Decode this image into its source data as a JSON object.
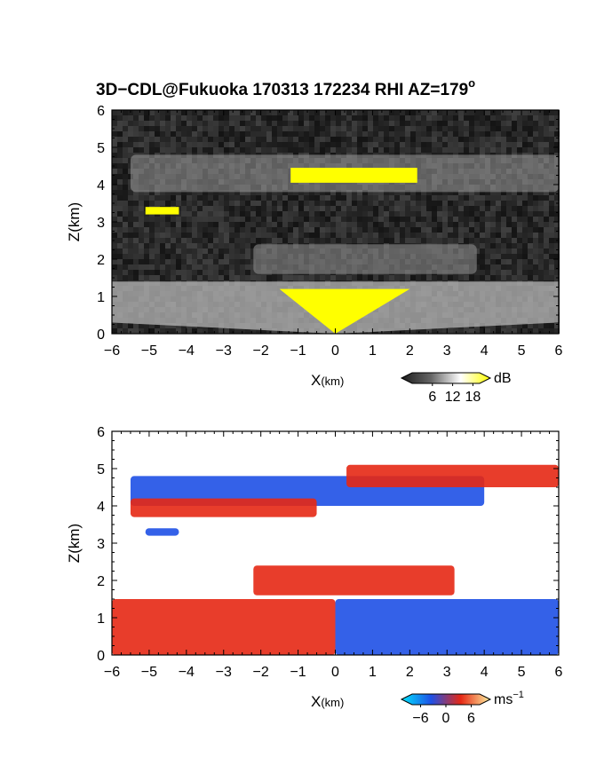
{
  "colors": {
    "echo_low": "#1c1c1c",
    "echo_high": "#ffffff",
    "echo_saturated": "#ffff00",
    "vel_negative_strong": "#00e5ff",
    "vel_negative": "#1e50e6",
    "vel_positive": "#e62814",
    "vel_positive_strong": "#fff0a0"
  },
  "chart_data": [
    {
      "type": "heatmap",
      "panel": "reflectivity",
      "title": "3D−CDL@Fukuoka 170313 172234 RHI AZ=179",
      "title_superscript": "o",
      "xlabel": "X",
      "xlabel_unit": "(km)",
      "ylabel": "Z(km)",
      "xlim": [
        -6,
        6
      ],
      "ylim": [
        0,
        6
      ],
      "xticks": [
        "−6",
        "−5",
        "−4",
        "−3",
        "−2",
        "−1",
        "0",
        "1",
        "2",
        "3",
        "4",
        "5",
        "6"
      ],
      "yticks": [
        "0",
        "1",
        "2",
        "3",
        "4",
        "5",
        "6"
      ],
      "colorbar": {
        "label": "dB",
        "ticks": [
          "6",
          "12",
          "18"
        ],
        "range": [
          0,
          20
        ]
      },
      "features": [
        {
          "name": "upper echo layer",
          "x": [
            -5.5,
            6
          ],
          "z": [
            3.8,
            4.8
          ],
          "peak_x": [
            -1.2,
            2.2
          ],
          "peak_z": 4.2
        },
        {
          "name": "isolated echo",
          "x": [
            -5.1,
            -4.2
          ],
          "z": [
            3.2,
            3.4
          ]
        },
        {
          "name": "mid echo band",
          "x": [
            -2.2,
            3.8
          ],
          "z": [
            1.6,
            2.4
          ]
        },
        {
          "name": "low echo layer",
          "x": [
            -6,
            6
          ],
          "z": [
            0,
            1.4
          ],
          "peak_x": [
            -1.5,
            2.0
          ],
          "peak_z": 0.9
        }
      ]
    },
    {
      "type": "heatmap",
      "panel": "doppler velocity",
      "xlabel": "X",
      "xlabel_unit": "(km)",
      "ylabel": "Z(km)",
      "xlim": [
        -6,
        6
      ],
      "ylim": [
        0,
        6
      ],
      "xticks": [
        "−6",
        "−5",
        "−4",
        "−3",
        "−2",
        "−1",
        "0",
        "1",
        "2",
        "3",
        "4",
        "5",
        "6"
      ],
      "yticks": [
        "0",
        "1",
        "2",
        "3",
        "4",
        "5",
        "6"
      ],
      "colorbar": {
        "label": "ms",
        "label_superscript": "−1",
        "ticks": [
          "−6",
          "0",
          "6"
        ],
        "range": [
          -8,
          8
        ]
      },
      "features": [
        {
          "name": "upper layer negative",
          "x": [
            -5.5,
            4
          ],
          "z": [
            4.0,
            4.8
          ],
          "velocity": -4
        },
        {
          "name": "upper layer positive west",
          "x": [
            -5.5,
            -0.5
          ],
          "z": [
            3.7,
            4.2
          ],
          "velocity": 5
        },
        {
          "name": "upper layer positive east",
          "x": [
            0.3,
            6
          ],
          "z": [
            4.5,
            5.1
          ],
          "velocity": 5
        },
        {
          "name": "isolated echo",
          "x": [
            -5.1,
            -4.2
          ],
          "z": [
            3.2,
            3.4
          ],
          "velocity": -4
        },
        {
          "name": "low layer west",
          "x": [
            -6,
            0
          ],
          "z": [
            0,
            1.5
          ],
          "velocity": 5
        },
        {
          "name": "low layer east",
          "x": [
            0,
            6
          ],
          "z": [
            0,
            1.5
          ],
          "velocity": -4
        },
        {
          "name": "mid band",
          "x": [
            -2.2,
            3.2
          ],
          "z": [
            1.6,
            2.4
          ],
          "velocity": 2
        }
      ]
    }
  ]
}
